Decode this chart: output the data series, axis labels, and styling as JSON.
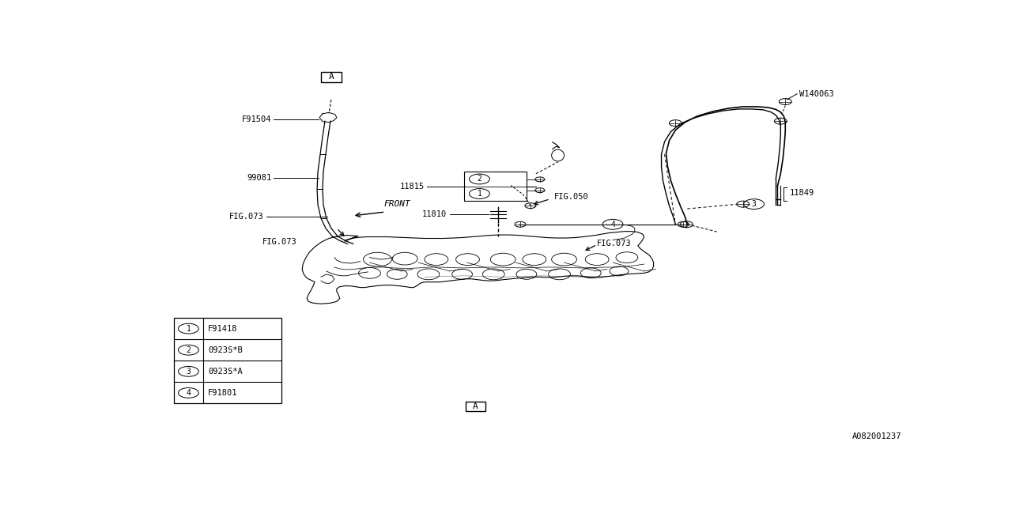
{
  "bg_color": "#ffffff",
  "line_color": "#000000",
  "diagram_id": "A082001237",
  "legend": [
    {
      "num": "1",
      "code": "F91418"
    },
    {
      "num": "2",
      "code": "0923S*B"
    },
    {
      "num": "3",
      "code": "0923S*A"
    },
    {
      "num": "4",
      "code": "F91801"
    }
  ],
  "left_tube": {
    "x": [
      0.255,
      0.252,
      0.248,
      0.243,
      0.243,
      0.25,
      0.262,
      0.278
    ],
    "y": [
      0.87,
      0.83,
      0.78,
      0.72,
      0.64,
      0.56,
      0.49,
      0.43
    ]
  },
  "right_hose_outer": {
    "x": [
      0.715,
      0.715,
      0.72,
      0.735,
      0.76,
      0.785,
      0.81,
      0.83,
      0.845,
      0.855,
      0.86,
      0.86,
      0.86,
      0.86,
      0.855,
      0.845,
      0.83
    ],
    "y": [
      0.42,
      0.39,
      0.31,
      0.23,
      0.155,
      0.105,
      0.075,
      0.06,
      0.06,
      0.07,
      0.085,
      0.12,
      0.18,
      0.25,
      0.3,
      0.33,
      0.35
    ]
  },
  "right_hose_inner": {
    "x": [
      0.7,
      0.7,
      0.706,
      0.722,
      0.748,
      0.773,
      0.798,
      0.818,
      0.833,
      0.843,
      0.848,
      0.848,
      0.848,
      0.848
    ],
    "y": [
      0.42,
      0.39,
      0.308,
      0.226,
      0.152,
      0.103,
      0.074,
      0.063,
      0.065,
      0.075,
      0.09,
      0.13,
      0.19,
      0.255
    ]
  },
  "engine_outer": {
    "x": [
      0.295,
      0.28,
      0.265,
      0.252,
      0.24,
      0.232,
      0.228,
      0.232,
      0.24,
      0.238,
      0.24,
      0.248,
      0.258,
      0.268,
      0.275,
      0.282,
      0.292,
      0.305,
      0.315,
      0.325,
      0.332,
      0.338,
      0.345,
      0.355,
      0.362,
      0.372,
      0.382,
      0.392,
      0.402,
      0.415,
      0.428,
      0.44,
      0.452,
      0.462,
      0.47,
      0.478,
      0.49,
      0.502,
      0.512,
      0.522,
      0.535,
      0.548,
      0.558,
      0.568,
      0.578,
      0.59,
      0.602,
      0.612,
      0.622,
      0.632,
      0.642,
      0.652,
      0.66,
      0.668,
      0.672,
      0.674,
      0.674,
      0.67,
      0.664,
      0.658,
      0.654,
      0.655,
      0.658,
      0.66,
      0.658,
      0.65,
      0.64,
      0.63,
      0.618,
      0.605,
      0.592,
      0.58,
      0.568,
      0.558,
      0.548,
      0.535,
      0.52,
      0.505,
      0.49,
      0.478,
      0.465,
      0.452,
      0.44,
      0.428,
      0.415,
      0.402,
      0.39,
      0.378,
      0.365,
      0.352,
      0.338,
      0.325,
      0.312,
      0.3,
      0.29,
      0.28,
      0.272,
      0.268,
      0.265,
      0.26,
      0.258,
      0.26,
      0.268,
      0.28,
      0.292,
      0.295
    ],
    "y": [
      0.45,
      0.448,
      0.452,
      0.458,
      0.468,
      0.482,
      0.498,
      0.512,
      0.522,
      0.535,
      0.548,
      0.555,
      0.558,
      0.558,
      0.555,
      0.552,
      0.552,
      0.555,
      0.558,
      0.56,
      0.558,
      0.555,
      0.552,
      0.55,
      0.548,
      0.548,
      0.55,
      0.552,
      0.552,
      0.55,
      0.548,
      0.546,
      0.548,
      0.552,
      0.555,
      0.555,
      0.552,
      0.548,
      0.545,
      0.545,
      0.548,
      0.548,
      0.545,
      0.542,
      0.542,
      0.545,
      0.548,
      0.55,
      0.55,
      0.548,
      0.545,
      0.542,
      0.54,
      0.538,
      0.535,
      0.528,
      0.518,
      0.508,
      0.498,
      0.49,
      0.48,
      0.47,
      0.46,
      0.452,
      0.445,
      0.44,
      0.438,
      0.438,
      0.44,
      0.442,
      0.445,
      0.448,
      0.45,
      0.452,
      0.45,
      0.448,
      0.445,
      0.442,
      0.442,
      0.445,
      0.448,
      0.452,
      0.455,
      0.458,
      0.46,
      0.46,
      0.458,
      0.455,
      0.452,
      0.45,
      0.448,
      0.448,
      0.45,
      0.452,
      0.455,
      0.46,
      0.465,
      0.47,
      0.475,
      0.478,
      0.475,
      0.468,
      0.46,
      0.455,
      0.45,
      0.45
    ]
  }
}
